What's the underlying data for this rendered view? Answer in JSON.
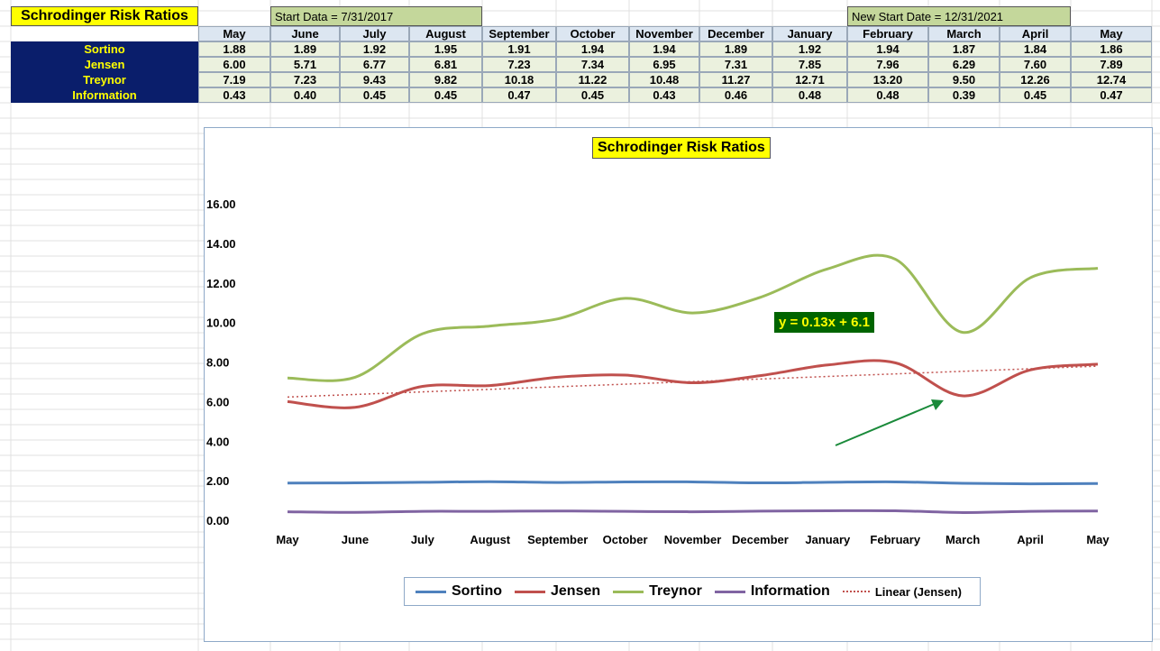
{
  "sheet": {
    "title": "Schrodinger Risk Ratios",
    "start_label": "Start Data = 7/31/2017",
    "new_start_label": "New Start Date = 12/31/2021",
    "months": [
      "May",
      "June",
      "July",
      "August",
      "September",
      "October",
      "November",
      "December",
      "January",
      "February",
      "March",
      "April",
      "May"
    ],
    "rows": [
      {
        "label": "Sortino",
        "values": [
          "1.88",
          "1.89",
          "1.92",
          "1.95",
          "1.91",
          "1.94",
          "1.94",
          "1.89",
          "1.92",
          "1.94",
          "1.87",
          "1.84",
          "1.86"
        ]
      },
      {
        "label": "Jensen",
        "values": [
          "6.00",
          "5.71",
          "6.77",
          "6.81",
          "7.23",
          "7.34",
          "6.95",
          "7.31",
          "7.85",
          "7.96",
          "6.29",
          "7.60",
          "7.89"
        ]
      },
      {
        "label": "Treynor",
        "values": [
          "7.19",
          "7.23",
          "9.43",
          "9.82",
          "10.18",
          "11.22",
          "10.48",
          "11.27",
          "12.71",
          "13.20",
          "9.50",
          "12.26",
          "12.74"
        ]
      },
      {
        "label": "Information",
        "values": [
          "0.43",
          "0.40",
          "0.45",
          "0.45",
          "0.47",
          "0.45",
          "0.43",
          "0.46",
          "0.48",
          "0.48",
          "0.39",
          "0.45",
          "0.47"
        ]
      }
    ]
  },
  "chart_data": {
    "type": "line",
    "title": "Schrodinger Risk Ratios",
    "categories": [
      "May",
      "June",
      "July",
      "August",
      "September",
      "October",
      "November",
      "December",
      "January",
      "February",
      "March",
      "April",
      "May"
    ],
    "ylim": [
      0,
      16
    ],
    "yticks": [
      "0.00",
      "2.00",
      "4.00",
      "6.00",
      "8.00",
      "10.00",
      "12.00",
      "14.00",
      "16.00"
    ],
    "series": [
      {
        "name": "Sortino",
        "color": "#4f81bd",
        "values": [
          1.88,
          1.89,
          1.92,
          1.95,
          1.91,
          1.94,
          1.94,
          1.89,
          1.92,
          1.94,
          1.87,
          1.84,
          1.86
        ]
      },
      {
        "name": "Jensen",
        "color": "#c0504d",
        "values": [
          6.0,
          5.71,
          6.77,
          6.81,
          7.23,
          7.34,
          6.95,
          7.31,
          7.85,
          7.96,
          6.29,
          7.6,
          7.89
        ]
      },
      {
        "name": "Treynor",
        "color": "#9bbb59",
        "values": [
          7.19,
          7.23,
          9.43,
          9.82,
          10.18,
          11.22,
          10.48,
          11.27,
          12.71,
          13.2,
          9.5,
          12.26,
          12.74
        ]
      },
      {
        "name": "Information",
        "color": "#8064a2",
        "values": [
          0.43,
          0.4,
          0.45,
          0.45,
          0.47,
          0.45,
          0.43,
          0.46,
          0.48,
          0.48,
          0.39,
          0.45,
          0.47
        ]
      }
    ],
    "trendline": {
      "name": "Linear (Jensen)",
      "color": "#c0504d",
      "slope": 0.13,
      "intercept": 6.1,
      "equation": "y = 0.13x + 6.1"
    },
    "arrow_color": "#1a8a3a",
    "legend": "bottom",
    "grid": false
  }
}
